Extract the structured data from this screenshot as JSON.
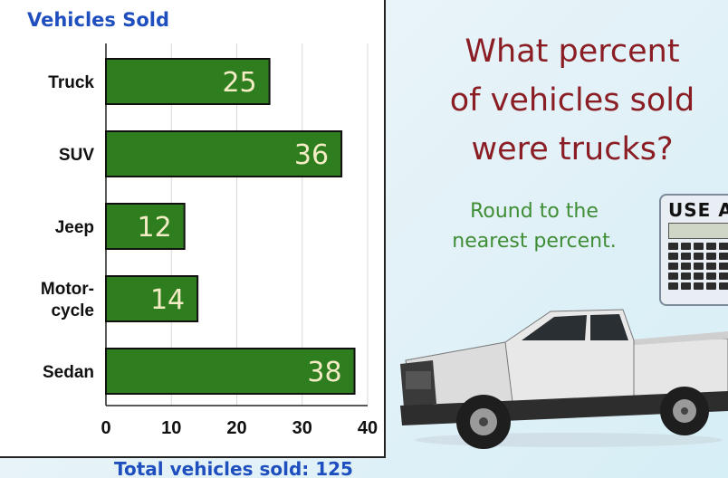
{
  "chart_data": {
    "type": "bar",
    "orientation": "horizontal",
    "title": "Vehicles Sold",
    "categories": [
      "Truck",
      "SUV",
      "Jeep",
      "Motor-\ncycle",
      "Sedan"
    ],
    "values": [
      25,
      36,
      12,
      14,
      38
    ],
    "xlim": [
      0,
      40
    ],
    "xticks": [
      0,
      10,
      20,
      30,
      40
    ],
    "grid": true,
    "bar_color": "#2e7d1e",
    "value_label_color": "#f3ecc4"
  },
  "footer": {
    "total": "Total vehicles sold: 125"
  },
  "question": {
    "line1": "What percent",
    "line2": "of vehicles sold",
    "line3": "were trucks?"
  },
  "instruction": {
    "line1": "Round to the",
    "line2": "nearest percent."
  },
  "calculator": {
    "label": "USE A",
    "icon": "calculator-icon"
  },
  "image": {
    "icon": "pickup-truck-icon"
  },
  "colors": {
    "question": "#8b1e24",
    "instruction": "#3f8d35",
    "title": "#1f4fbf"
  }
}
